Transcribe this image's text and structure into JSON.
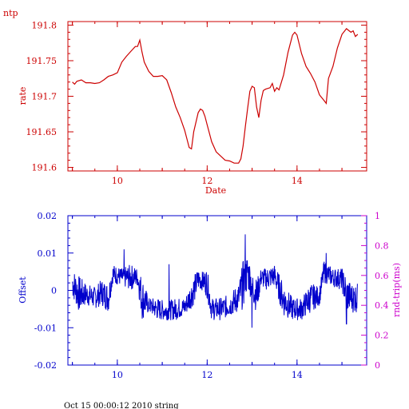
{
  "footer_text": "Oct 15 00:00:12 2010 string",
  "colors": {
    "top": "#cc0000",
    "bottom_left": "#0000cc",
    "bottom_right": "#cc00cc",
    "frame_bottom": "#0000cc",
    "frame_top": "#cc0000"
  },
  "chart_data": [
    {
      "type": "line",
      "title": "ntp",
      "xlabel": "Date",
      "ylabel": "rate",
      "xlim": [
        8.9,
        15.55
      ],
      "ylim": [
        191.595,
        191.805
      ],
      "x_ticks": [
        "10",
        "12",
        "14"
      ],
      "y_ticks": [
        "191.6",
        "191.65",
        "191.7",
        "191.75",
        "191.8"
      ],
      "grid": false,
      "series": [
        {
          "color": "#cc0000",
          "points": [
            [
              9.0,
              191.72
            ],
            [
              9.05,
              191.717
            ],
            [
              9.1,
              191.721
            ],
            [
              9.2,
              191.723
            ],
            [
              9.3,
              191.719
            ],
            [
              9.4,
              191.719
            ],
            [
              9.5,
              191.718
            ],
            [
              9.6,
              191.719
            ],
            [
              9.7,
              191.723
            ],
            [
              9.8,
              191.728
            ],
            [
              9.9,
              191.73
            ],
            [
              10.0,
              191.733
            ],
            [
              10.1,
              191.748
            ],
            [
              10.2,
              191.756
            ],
            [
              10.3,
              191.763
            ],
            [
              10.4,
              191.77
            ],
            [
              10.45,
              191.77
            ],
            [
              10.5,
              191.779
            ],
            [
              10.55,
              191.762
            ],
            [
              10.6,
              191.748
            ],
            [
              10.7,
              191.735
            ],
            [
              10.8,
              191.728
            ],
            [
              10.9,
              191.728
            ],
            [
              11.0,
              191.729
            ],
            [
              11.1,
              191.723
            ],
            [
              11.2,
              191.705
            ],
            [
              11.3,
              191.685
            ],
            [
              11.4,
              191.67
            ],
            [
              11.5,
              191.652
            ],
            [
              11.55,
              191.64
            ],
            [
              11.6,
              191.628
            ],
            [
              11.65,
              191.626
            ],
            [
              11.7,
              191.65
            ],
            [
              11.8,
              191.677
            ],
            [
              11.85,
              191.682
            ],
            [
              11.9,
              191.68
            ],
            [
              11.95,
              191.672
            ],
            [
              12.0,
              191.66
            ],
            [
              12.1,
              191.636
            ],
            [
              12.2,
              191.622
            ],
            [
              12.3,
              191.616
            ],
            [
              12.4,
              191.61
            ],
            [
              12.5,
              191.609
            ],
            [
              12.6,
              191.606
            ],
            [
              12.7,
              191.606
            ],
            [
              12.75,
              191.612
            ],
            [
              12.8,
              191.63
            ],
            [
              12.85,
              191.658
            ],
            [
              12.9,
              191.683
            ],
            [
              12.95,
              191.707
            ],
            [
              13.0,
              191.714
            ],
            [
              13.05,
              191.712
            ],
            [
              13.1,
              191.685
            ],
            [
              13.15,
              191.67
            ],
            [
              13.2,
              191.694
            ],
            [
              13.25,
              191.708
            ],
            [
              13.3,
              191.71
            ],
            [
              13.4,
              191.712
            ],
            [
              13.45,
              191.718
            ],
            [
              13.5,
              191.707
            ],
            [
              13.55,
              191.712
            ],
            [
              13.6,
              191.709
            ],
            [
              13.7,
              191.73
            ],
            [
              13.8,
              191.762
            ],
            [
              13.9,
              191.786
            ],
            [
              13.95,
              191.79
            ],
            [
              14.0,
              191.786
            ],
            [
              14.1,
              191.76
            ],
            [
              14.2,
              191.742
            ],
            [
              14.3,
              191.732
            ],
            [
              14.4,
              191.72
            ],
            [
              14.5,
              191.702
            ],
            [
              14.6,
              191.694
            ],
            [
              14.65,
              191.69
            ],
            [
              14.7,
              191.725
            ],
            [
              14.8,
              191.742
            ],
            [
              14.9,
              191.768
            ],
            [
              15.0,
              191.787
            ],
            [
              15.1,
              191.795
            ],
            [
              15.2,
              191.79
            ],
            [
              15.25,
              191.792
            ],
            [
              15.3,
              191.784
            ],
            [
              15.35,
              191.787
            ]
          ]
        }
      ]
    },
    {
      "type": "line",
      "title": "",
      "xlabel": "",
      "ylabel": "Offset",
      "y2label": "rnd-trip(ms)",
      "xlim": [
        8.9,
        15.55
      ],
      "ylim": [
        -0.02,
        0.02
      ],
      "y2lim": [
        0,
        1
      ],
      "x_ticks": [
        "10",
        "12",
        "14"
      ],
      "y_ticks": [
        "-0.02",
        "-0.01",
        "0",
        "0.01",
        "0.02"
      ],
      "y2_ticks": [
        "0",
        "0.2",
        "0.4",
        "0.6",
        "0.8",
        "1"
      ],
      "grid": false,
      "series": [
        {
          "color": "#0000cc",
          "noisy": true,
          "envelope": [
            [
              9.0,
              -0.002,
              0.006
            ],
            [
              9.15,
              -0.006,
              0.004
            ],
            [
              9.3,
              -0.004,
              0.002
            ],
            [
              9.5,
              -0.005,
              0.001
            ],
            [
              9.65,
              -0.004,
              0.003
            ],
            [
              9.8,
              -0.006,
              0.002
            ],
            [
              9.9,
              0.002,
              0.007
            ],
            [
              10.1,
              0.001,
              0.006
            ],
            [
              10.3,
              0.0,
              0.007
            ],
            [
              10.45,
              0.001,
              0.006
            ],
            [
              10.55,
              -0.008,
              0.004
            ],
            [
              10.7,
              -0.006,
              -0.002
            ],
            [
              10.9,
              -0.008,
              -0.002
            ],
            [
              11.1,
              -0.008,
              -0.003
            ],
            [
              11.3,
              -0.008,
              -0.002
            ],
            [
              11.5,
              -0.007,
              -0.002
            ],
            [
              11.7,
              -0.004,
              0.004
            ],
            [
              11.8,
              0.0,
              0.006
            ],
            [
              11.9,
              0.0,
              0.005
            ],
            [
              12.0,
              -0.002,
              0.006
            ],
            [
              12.1,
              -0.008,
              -0.002
            ],
            [
              12.3,
              -0.008,
              -0.002
            ],
            [
              12.5,
              -0.007,
              -0.001
            ],
            [
              12.7,
              -0.006,
              0.002
            ],
            [
              12.8,
              -0.005,
              0.008
            ],
            [
              12.9,
              0.0,
              0.01
            ],
            [
              13.0,
              -0.003,
              0.006
            ],
            [
              13.1,
              -0.006,
              0.003
            ],
            [
              13.2,
              0.001,
              0.006
            ],
            [
              13.3,
              0.0,
              0.006
            ],
            [
              13.5,
              0.001,
              0.007
            ],
            [
              13.7,
              -0.007,
              0.002
            ],
            [
              13.9,
              -0.008,
              -0.002
            ],
            [
              14.1,
              -0.008,
              -0.002
            ],
            [
              14.3,
              -0.006,
              0.002
            ],
            [
              14.5,
              -0.004,
              0.001
            ],
            [
              14.6,
              0.002,
              0.008
            ],
            [
              14.8,
              0.001,
              0.006
            ],
            [
              15.0,
              0.0,
              0.006
            ],
            [
              15.1,
              -0.006,
              0.004
            ],
            [
              15.2,
              -0.006,
              0.002
            ],
            [
              15.35,
              -0.006,
              0.002
            ]
          ],
          "spikes": [
            [
              10.15,
              0.011
            ],
            [
              12.85,
              0.015
            ],
            [
              13.0,
              -0.01
            ],
            [
              14.65,
              0.01
            ],
            [
              15.1,
              -0.009
            ],
            [
              11.15,
              0.007
            ]
          ]
        }
      ]
    }
  ]
}
